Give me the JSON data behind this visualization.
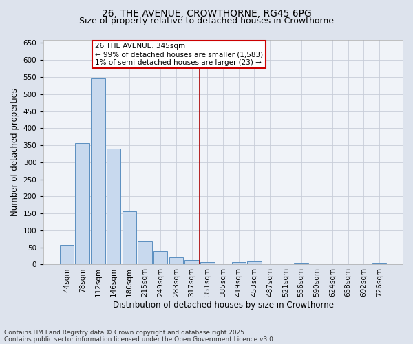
{
  "title1": "26, THE AVENUE, CROWTHORNE, RG45 6PG",
  "title2": "Size of property relative to detached houses in Crowthorne",
  "xlabel": "Distribution of detached houses by size in Crowthorne",
  "ylabel": "Number of detached properties",
  "categories": [
    "44sqm",
    "78sqm",
    "112sqm",
    "146sqm",
    "180sqm",
    "215sqm",
    "249sqm",
    "283sqm",
    "317sqm",
    "351sqm",
    "385sqm",
    "419sqm",
    "453sqm",
    "487sqm",
    "521sqm",
    "556sqm",
    "590sqm",
    "624sqm",
    "658sqm",
    "692sqm",
    "726sqm"
  ],
  "values": [
    58,
    356,
    545,
    340,
    157,
    68,
    40,
    22,
    13,
    6,
    0,
    7,
    8,
    0,
    0,
    4,
    0,
    0,
    0,
    0,
    4
  ],
  "bar_color": "#c8d9ee",
  "bar_edge_color": "#5a8fc0",
  "vline_color": "#aa0000",
  "annotation_text": "26 THE AVENUE: 345sqm\n← 99% of detached houses are smaller (1,583)\n1% of semi-detached houses are larger (23) →",
  "annotation_box_color": "#cc0000",
  "annotation_bg": "#ffffff",
  "ylim": [
    0,
    660
  ],
  "yticks": [
    0,
    50,
    100,
    150,
    200,
    250,
    300,
    350,
    400,
    450,
    500,
    550,
    600,
    650
  ],
  "fig_bg_color": "#dde3ed",
  "plot_bg": "#f0f3f8",
  "grid_color": "#c8cdd8",
  "footer1": "Contains HM Land Registry data © Crown copyright and database right 2025.",
  "footer2": "Contains public sector information licensed under the Open Government Licence v3.0.",
  "title1_fontsize": 10,
  "title2_fontsize": 9,
  "axis_label_fontsize": 8.5,
  "tick_fontsize": 7.5,
  "footer_fontsize": 6.5
}
